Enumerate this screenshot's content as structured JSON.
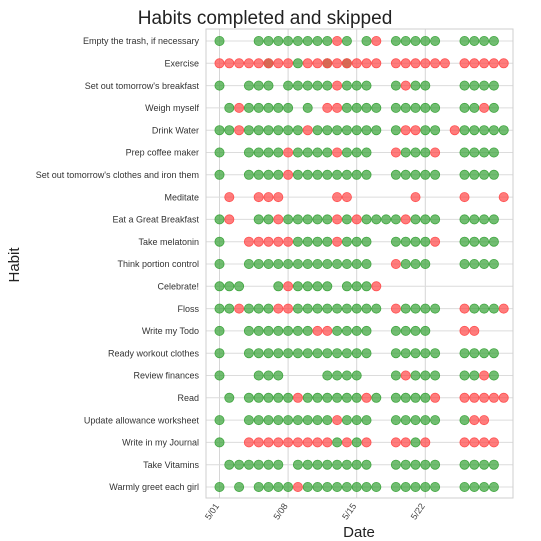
{
  "chart_data": {
    "type": "scatter",
    "title": "Habits completed   and skipped",
    "xlabel": "Date",
    "ylabel": "Habit",
    "x_ticks": [
      "5/01",
      "5/08",
      "5/15",
      "5/22"
    ],
    "x_range": [
      "4/30",
      "5/30"
    ],
    "grid": true,
    "colors": {
      "completed": "#3aa33a",
      "skipped": "#ff4a4a"
    },
    "habits": [
      {
        "name": "Empty the trash, if necessary",
        "completed": [
          "5/01",
          "5/05",
          "5/06",
          "5/07",
          "5/08",
          "5/09",
          "5/10",
          "5/11",
          "5/12",
          "5/14",
          "5/16",
          "5/19",
          "5/20",
          "5/21",
          "5/22",
          "5/23",
          "5/26",
          "5/27",
          "5/28",
          "5/29"
        ],
        "skipped": [
          "5/13",
          "5/17"
        ]
      },
      {
        "name": "Exercise",
        "completed": [
          "5/06",
          "5/09",
          "5/12",
          "5/14"
        ],
        "skipped": [
          "5/01",
          "5/02",
          "5/03",
          "5/04",
          "5/05",
          "5/06",
          "5/07",
          "5/08",
          "5/10",
          "5/11",
          "5/12",
          "5/13",
          "5/14",
          "5/15",
          "5/16",
          "5/17",
          "5/19",
          "5/20",
          "5/21",
          "5/22",
          "5/23",
          "5/24",
          "5/26",
          "5/27",
          "5/28",
          "5/29",
          "5/30"
        ]
      },
      {
        "name": "Set out tomorrow's breakfast",
        "completed": [
          "5/01",
          "5/04",
          "5/05",
          "5/06",
          "5/08",
          "5/09",
          "5/10",
          "5/11",
          "5/12",
          "5/14",
          "5/15",
          "5/16",
          "5/19",
          "5/21",
          "5/22",
          "5/26",
          "5/27",
          "5/28",
          "5/29"
        ],
        "skipped": [
          "5/13",
          "5/20"
        ]
      },
      {
        "name": "Weigh myself",
        "completed": [
          "5/02",
          "5/04",
          "5/05",
          "5/06",
          "5/07",
          "5/08",
          "5/10",
          "5/14",
          "5/15",
          "5/16",
          "5/17",
          "5/19",
          "5/20",
          "5/21",
          "5/22",
          "5/23",
          "5/26",
          "5/27",
          "5/29"
        ],
        "skipped": [
          "5/03",
          "5/12",
          "5/13",
          "5/28"
        ]
      },
      {
        "name": "Drink Water",
        "completed": [
          "5/01",
          "5/02",
          "5/04",
          "5/05",
          "5/06",
          "5/07",
          "5/08",
          "5/09",
          "5/11",
          "5/12",
          "5/13",
          "5/14",
          "5/15",
          "5/16",
          "5/17",
          "5/19",
          "5/22",
          "5/23",
          "5/26",
          "5/27",
          "5/28",
          "5/29",
          "5/30"
        ],
        "skipped": [
          "5/03",
          "5/10",
          "5/20",
          "5/21",
          "5/25"
        ]
      },
      {
        "name": "Prep coffee maker",
        "completed": [
          "5/01",
          "5/04",
          "5/05",
          "5/06",
          "5/07",
          "5/09",
          "5/10",
          "5/11",
          "5/12",
          "5/14",
          "5/15",
          "5/16",
          "5/20",
          "5/21",
          "5/22",
          "5/26",
          "5/27",
          "5/28",
          "5/29"
        ],
        "skipped": [
          "5/08",
          "5/13",
          "5/19",
          "5/23"
        ]
      },
      {
        "name": "Set out tomorrow's clothes and iron them",
        "completed": [
          "5/01",
          "5/04",
          "5/05",
          "5/06",
          "5/07",
          "5/09",
          "5/10",
          "5/11",
          "5/12",
          "5/13",
          "5/14",
          "5/15",
          "5/16",
          "5/19",
          "5/20",
          "5/21",
          "5/22",
          "5/23",
          "5/26",
          "5/27",
          "5/28",
          "5/29"
        ],
        "skipped": [
          "5/08"
        ]
      },
      {
        "name": "Meditate",
        "completed": [],
        "skipped": [
          "5/02",
          "5/05",
          "5/06",
          "5/07",
          "5/13",
          "5/14",
          "5/21",
          "5/26",
          "5/30"
        ]
      },
      {
        "name": "Eat a Great Breakfast",
        "completed": [
          "5/01",
          "5/05",
          "5/06",
          "5/08",
          "5/09",
          "5/10",
          "5/11",
          "5/12",
          "5/14",
          "5/16",
          "5/17",
          "5/18",
          "5/19",
          "5/21",
          "5/22",
          "5/23",
          "5/26",
          "5/27",
          "5/28",
          "5/29"
        ],
        "skipped": [
          "5/02",
          "5/07",
          "5/13",
          "5/15",
          "5/20"
        ]
      },
      {
        "name": "Take melatonin",
        "completed": [
          "5/01",
          "5/09",
          "5/10",
          "5/11",
          "5/12",
          "5/14",
          "5/15",
          "5/16",
          "5/19",
          "5/20",
          "5/21",
          "5/22",
          "5/26",
          "5/27",
          "5/28",
          "5/29"
        ],
        "skipped": [
          "5/04",
          "5/05",
          "5/06",
          "5/07",
          "5/08",
          "5/13",
          "5/23"
        ]
      },
      {
        "name": "Think portion control",
        "completed": [
          "5/01",
          "5/04",
          "5/05",
          "5/06",
          "5/07",
          "5/08",
          "5/09",
          "5/10",
          "5/11",
          "5/12",
          "5/13",
          "5/14",
          "5/15",
          "5/16",
          "5/20",
          "5/21",
          "5/22",
          "5/26",
          "5/27",
          "5/28",
          "5/29"
        ],
        "skipped": [
          "5/19"
        ]
      },
      {
        "name": "Celebrate!",
        "completed": [
          "5/01",
          "5/02",
          "5/03",
          "5/07",
          "5/09",
          "5/10",
          "5/11",
          "5/12",
          "5/14",
          "5/15",
          "5/16"
        ],
        "skipped": [
          "5/08",
          "5/17"
        ]
      },
      {
        "name": "Floss",
        "completed": [
          "5/01",
          "5/02",
          "5/04",
          "5/05",
          "5/06",
          "5/09",
          "5/10",
          "5/11",
          "5/12",
          "5/13",
          "5/14",
          "5/15",
          "5/16",
          "5/17",
          "5/20",
          "5/21",
          "5/22",
          "5/23",
          "5/27",
          "5/28",
          "5/29"
        ],
        "skipped": [
          "5/03",
          "5/07",
          "5/08",
          "5/19",
          "5/26",
          "5/30"
        ]
      },
      {
        "name": "Write my Todo",
        "completed": [
          "5/01",
          "5/04",
          "5/05",
          "5/06",
          "5/07",
          "5/08",
          "5/09",
          "5/10",
          "5/13",
          "5/14",
          "5/15",
          "5/16",
          "5/19",
          "5/20",
          "5/21",
          "5/22"
        ],
        "skipped": [
          "5/11",
          "5/12",
          "5/26",
          "5/27"
        ]
      },
      {
        "name": "Ready workout clothes",
        "completed": [
          "5/01",
          "5/04",
          "5/05",
          "5/06",
          "5/07",
          "5/08",
          "5/09",
          "5/10",
          "5/11",
          "5/12",
          "5/13",
          "5/14",
          "5/15",
          "5/16",
          "5/19",
          "5/20",
          "5/21",
          "5/22",
          "5/23",
          "5/26",
          "5/27",
          "5/28",
          "5/29"
        ],
        "skipped": []
      },
      {
        "name": "Review finances",
        "completed": [
          "5/01",
          "5/05",
          "5/06",
          "5/07",
          "5/12",
          "5/13",
          "5/14",
          "5/15",
          "5/19",
          "5/21",
          "5/22",
          "5/23",
          "5/26",
          "5/27",
          "5/29"
        ],
        "skipped": [
          "5/20",
          "5/28"
        ]
      },
      {
        "name": "Read",
        "completed": [
          "5/02",
          "5/04",
          "5/05",
          "5/06",
          "5/07",
          "5/08",
          "5/10",
          "5/11",
          "5/12",
          "5/13",
          "5/14",
          "5/15",
          "5/17",
          "5/19",
          "5/20",
          "5/21",
          "5/22"
        ],
        "skipped": [
          "5/09",
          "5/16",
          "5/23",
          "5/26",
          "5/27",
          "5/28",
          "5/29",
          "5/30"
        ]
      },
      {
        "name": "Update allowance worksheet",
        "completed": [
          "5/01",
          "5/04",
          "5/05",
          "5/06",
          "5/07",
          "5/08",
          "5/09",
          "5/10",
          "5/11",
          "5/12",
          "5/14",
          "5/15",
          "5/16",
          "5/19",
          "5/20",
          "5/21",
          "5/22",
          "5/23",
          "5/26"
        ],
        "skipped": [
          "5/13",
          "5/27",
          "5/28"
        ]
      },
      {
        "name": "Write in my Journal",
        "completed": [
          "5/01",
          "5/13",
          "5/15",
          "5/21"
        ],
        "skipped": [
          "5/04",
          "5/05",
          "5/06",
          "5/07",
          "5/08",
          "5/09",
          "5/10",
          "5/11",
          "5/12",
          "5/14",
          "5/16",
          "5/19",
          "5/20",
          "5/22",
          "5/26",
          "5/27",
          "5/28",
          "5/29"
        ]
      },
      {
        "name": "Take Vitamins",
        "completed": [
          "5/02",
          "5/03",
          "5/04",
          "5/05",
          "5/06",
          "5/07",
          "5/09",
          "5/10",
          "5/11",
          "5/12",
          "5/13",
          "5/14",
          "5/15",
          "5/16",
          "5/19",
          "5/20",
          "5/21",
          "5/22",
          "5/23",
          "5/26",
          "5/27",
          "5/28",
          "5/29"
        ],
        "skipped": []
      },
      {
        "name": "Warmly greet each girl",
        "completed": [
          "5/01",
          "5/03",
          "5/05",
          "5/06",
          "5/07",
          "5/08",
          "5/10",
          "5/11",
          "5/12",
          "5/13",
          "5/14",
          "5/15",
          "5/16",
          "5/17",
          "5/19",
          "5/20",
          "5/21",
          "5/22",
          "5/23",
          "5/26",
          "5/27",
          "5/28",
          "5/29"
        ],
        "skipped": [
          "5/09"
        ]
      }
    ]
  }
}
